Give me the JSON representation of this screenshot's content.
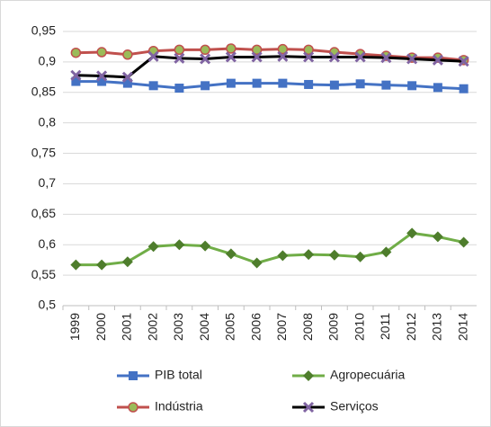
{
  "chart_data": {
    "type": "line",
    "categories": [
      "1999",
      "2000",
      "2001",
      "2002",
      "2003",
      "2004",
      "2005",
      "2006",
      "2007",
      "2008",
      "2009",
      "2010",
      "2011",
      "2012",
      "2013",
      "2014"
    ],
    "series": [
      {
        "name": "PIB total",
        "color": "#4472c4",
        "marker": "square",
        "marker_color": "#4472c4",
        "values": [
          0.868,
          0.868,
          0.865,
          0.861,
          0.857,
          0.861,
          0.865,
          0.865,
          0.865,
          0.863,
          0.862,
          0.864,
          0.862,
          0.861,
          0.858,
          0.856
        ]
      },
      {
        "name": "Agropecuária",
        "color": "#70ad47",
        "marker": "diamond",
        "marker_color": "#4e7d2c",
        "values": [
          0.567,
          0.567,
          0.572,
          0.597,
          0.6,
          0.598,
          0.585,
          0.57,
          0.582,
          0.584,
          0.583,
          0.58,
          0.588,
          0.619,
          0.613,
          0.604
        ]
      },
      {
        "name": "Indústria",
        "color": "#c0504d",
        "marker": "circle",
        "marker_color": "#9bbb59",
        "values": [
          0.915,
          0.916,
          0.912,
          0.918,
          0.92,
          0.92,
          0.922,
          0.92,
          0.921,
          0.92,
          0.916,
          0.913,
          0.91,
          0.907,
          0.907,
          0.903
        ]
      },
      {
        "name": "Serviços",
        "color": "#000000",
        "marker": "x",
        "marker_color": "#8064a2",
        "values": [
          0.878,
          0.877,
          0.875,
          0.909,
          0.906,
          0.905,
          0.908,
          0.908,
          0.909,
          0.908,
          0.908,
          0.908,
          0.907,
          0.905,
          0.903,
          0.901
        ]
      }
    ],
    "ylim": [
      0.5,
      0.95
    ],
    "yticks": [
      {
        "value": 0.5,
        "label": "0,5"
      },
      {
        "value": 0.55,
        "label": "0,55"
      },
      {
        "value": 0.6,
        "label": "0,6"
      },
      {
        "value": 0.65,
        "label": "0,65"
      },
      {
        "value": 0.7,
        "label": "0,7"
      },
      {
        "value": 0.75,
        "label": "0,75"
      },
      {
        "value": 0.8,
        "label": "0,8"
      },
      {
        "value": 0.85,
        "label": "0,85"
      },
      {
        "value": 0.9,
        "label": "0,9"
      },
      {
        "value": 0.95,
        "label": "0,95"
      }
    ],
    "grid": true,
    "legend": "bottom"
  }
}
